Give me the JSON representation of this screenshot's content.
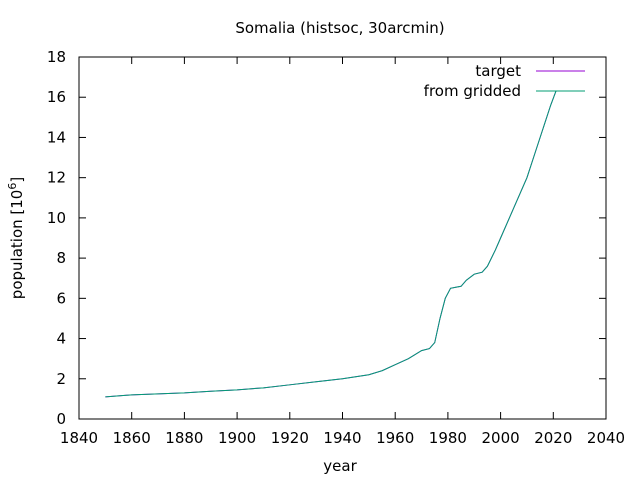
{
  "chart_data": {
    "type": "line",
    "title": "Somalia (histsoc, 30arcmin)",
    "xlabel": "year",
    "ylabel": "population [10",
    "ylabel_sup": "6",
    "ylabel_tail": "]",
    "xlim": [
      1840,
      2040
    ],
    "ylim": [
      0,
      18
    ],
    "xticks": [
      1840,
      1860,
      1880,
      1900,
      1920,
      1940,
      1960,
      1980,
      2000,
      2020,
      2040
    ],
    "yticks": [
      0,
      2,
      4,
      6,
      8,
      10,
      12,
      14,
      16,
      18
    ],
    "grid": false,
    "legend_position": "top-right",
    "series": [
      {
        "name": "target",
        "color": "#9400d3",
        "x": [
          1850,
          1860,
          1870,
          1880,
          1890,
          1900,
          1910,
          1920,
          1930,
          1940,
          1950,
          1955,
          1960,
          1965,
          1970,
          1973,
          1975,
          1977,
          1979,
          1981,
          1983,
          1985,
          1987,
          1990,
          1993,
          1995,
          1998,
          2000,
          2003,
          2006,
          2010,
          2013,
          2016,
          2019,
          2021
        ],
        "y": [
          1.1,
          1.2,
          1.25,
          1.3,
          1.38,
          1.45,
          1.55,
          1.7,
          1.85,
          2.0,
          2.2,
          2.4,
          2.7,
          3.0,
          3.4,
          3.5,
          3.8,
          5.0,
          6.0,
          6.5,
          6.55,
          6.6,
          6.9,
          7.2,
          7.3,
          7.6,
          8.4,
          9.0,
          9.9,
          10.8,
          12.0,
          13.2,
          14.4,
          15.6,
          16.3
        ]
      },
      {
        "name": "from gridded",
        "color": "#009e73",
        "x": [
          1850,
          1860,
          1870,
          1880,
          1890,
          1900,
          1910,
          1920,
          1930,
          1940,
          1950,
          1955,
          1960,
          1965,
          1970,
          1973,
          1975,
          1977,
          1979,
          1981,
          1983,
          1985,
          1987,
          1990,
          1993,
          1995,
          1998,
          2000,
          2003,
          2006,
          2010,
          2013,
          2016,
          2019,
          2021
        ],
        "y": [
          1.1,
          1.2,
          1.25,
          1.3,
          1.38,
          1.45,
          1.55,
          1.7,
          1.85,
          2.0,
          2.2,
          2.4,
          2.7,
          3.0,
          3.4,
          3.5,
          3.8,
          5.0,
          6.0,
          6.5,
          6.55,
          6.6,
          6.9,
          7.2,
          7.3,
          7.6,
          8.4,
          9.0,
          9.9,
          10.8,
          12.0,
          13.2,
          14.4,
          15.6,
          16.3
        ]
      }
    ]
  }
}
